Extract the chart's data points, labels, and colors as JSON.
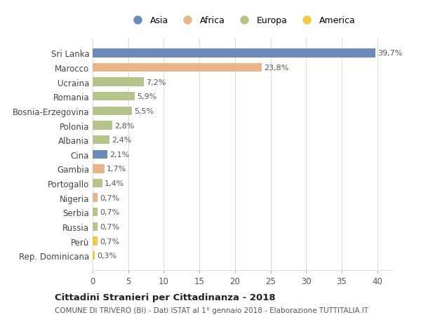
{
  "countries": [
    "Sri Lanka",
    "Marocco",
    "Ucraina",
    "Romania",
    "Bosnia-Erzegovina",
    "Polonia",
    "Albania",
    "Cina",
    "Gambia",
    "Portogallo",
    "Nigeria",
    "Serbia",
    "Russia",
    "Perù",
    "Rep. Dominicana"
  ],
  "values": [
    39.7,
    23.8,
    7.2,
    5.9,
    5.5,
    2.8,
    2.4,
    2.1,
    1.7,
    1.4,
    0.7,
    0.7,
    0.7,
    0.7,
    0.3
  ],
  "labels": [
    "39,7%",
    "23,8%",
    "7,2%",
    "5,9%",
    "5,5%",
    "2,8%",
    "2,4%",
    "2,1%",
    "1,7%",
    "1,4%",
    "0,7%",
    "0,7%",
    "0,7%",
    "0,7%",
    "0,3%"
  ],
  "continents": [
    "Asia",
    "Africa",
    "Europa",
    "Europa",
    "Europa",
    "Europa",
    "Europa",
    "Asia",
    "Africa",
    "Europa",
    "Africa",
    "Europa",
    "Europa",
    "America",
    "America"
  ],
  "colors": {
    "Asia": "#6b8cba",
    "Africa": "#e8b48a",
    "Europa": "#b5c48a",
    "America": "#f0c84a"
  },
  "legend_order": [
    "Asia",
    "Africa",
    "Europa",
    "America"
  ],
  "title": "Cittadini Stranieri per Cittadinanza - 2018",
  "subtitle": "COMUNE DI TRIVERO (BI) - Dati ISTAT al 1° gennaio 2018 - Elaborazione TUTTITALIA.IT",
  "xlim": [
    0,
    42
  ],
  "xticks": [
    0,
    5,
    10,
    15,
    20,
    25,
    30,
    35,
    40
  ],
  "background_color": "#ffffff",
  "grid_color": "#dddddd"
}
